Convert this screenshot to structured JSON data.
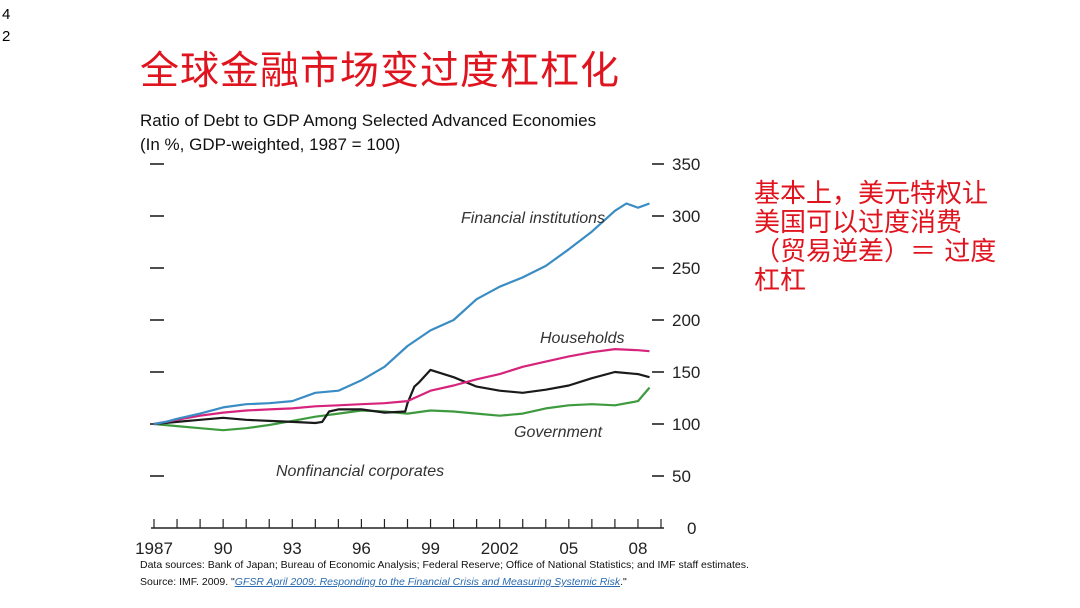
{
  "slide": {
    "number_line1": "4",
    "number_line2": "2"
  },
  "title": "全球金融市场变过度杠杠化",
  "subtitle": {
    "line1": "Ratio of Debt to GDP Among Selected Advanced Economies",
    "line2": "(In %, GDP-weighted, 1987 = 100)"
  },
  "note": "基本上，美元特权让\n美国可以过度消费\n（贸易逆差）＝ 过度\n杠杠",
  "footer": {
    "line1": "Data sources: Bank of Japan; Bureau of Economic Analysis; Federal Reserve; Office of National Statistics; and IMF staff estimates.",
    "line2_prefix": "Source: IMF. 2009. \"",
    "line2_link": "GFSR April 2009: Responding to the Financial Crisis and Measuring Systemic Risk",
    "line2_suffix": ".\""
  },
  "colors": {
    "financial": "#3a8cc4",
    "households": "#d6247c",
    "government": "#3e9a3e",
    "nonfinancial": "#1a1a1a",
    "title": "#e0141e"
  },
  "chart_data": {
    "type": "line",
    "title": "Ratio of Debt to GDP Among Selected Advanced Economies",
    "ylabel": "(In %, GDP-weighted, 1987 = 100)",
    "ylim": [
      0,
      350
    ],
    "yticks": [
      0,
      50,
      100,
      150,
      200,
      250,
      300,
      350
    ],
    "xlim": [
      1987,
      2009
    ],
    "xticks": [
      {
        "value": 1987,
        "label": "1987"
      },
      {
        "value": 1990,
        "label": "90"
      },
      {
        "value": 1993,
        "label": "93"
      },
      {
        "value": 1996,
        "label": "96"
      },
      {
        "value": 1999,
        "label": "99"
      },
      {
        "value": 2002,
        "label": "2002"
      },
      {
        "value": 2005,
        "label": "05"
      },
      {
        "value": 2008,
        "label": "08"
      }
    ],
    "series": [
      {
        "name": "Financial institutions",
        "key": "financial",
        "x": [
          1987,
          1987.5,
          1988,
          1989,
          1990,
          1991,
          1992,
          1993,
          1994,
          1995,
          1996,
          1997,
          1998,
          1999,
          2000,
          2001,
          2002,
          2003,
          2004,
          2005,
          2006,
          2007,
          2007.5,
          2008,
          2008.5
        ],
        "values": [
          100,
          102,
          105,
          110,
          116,
          119,
          120,
          122,
          130,
          132,
          142,
          155,
          175,
          190,
          200,
          220,
          232,
          241,
          252,
          268,
          285,
          305,
          312,
          308,
          312
        ]
      },
      {
        "name": "Households",
        "key": "households",
        "x": [
          1987,
          1988,
          1989,
          1990,
          1991,
          1992,
          1993,
          1994,
          1995,
          1996,
          1997,
          1998,
          1999,
          2000,
          2001,
          2002,
          2003,
          2004,
          2005,
          2006,
          2007,
          2008,
          2008.5
        ],
        "values": [
          100,
          104,
          108,
          111,
          113,
          114,
          115,
          117,
          118,
          119,
          120,
          122,
          132,
          137,
          143,
          148,
          155,
          160,
          165,
          169,
          172,
          171,
          170
        ]
      },
      {
        "name": "Government",
        "key": "government",
        "x": [
          1987,
          1988,
          1989,
          1990,
          1991,
          1992,
          1993,
          1994,
          1995,
          1996,
          1997,
          1998,
          1999,
          2000,
          2001,
          2002,
          2003,
          2004,
          2005,
          2006,
          2007,
          2008,
          2008.5
        ],
        "values": [
          100,
          98,
          96,
          94,
          96,
          99,
          103,
          107,
          110,
          113,
          112,
          110,
          113,
          112,
          110,
          108,
          110,
          115,
          118,
          119,
          118,
          122,
          135
        ]
      },
      {
        "name": "Nonfinancial corporates",
        "key": "nonfinancial",
        "x": [
          1987,
          1988,
          1989,
          1990,
          1991,
          1992,
          1993,
          1994,
          1994.3,
          1994.6,
          1995,
          1996,
          1997,
          1997.9,
          1998,
          1998.3,
          1998.5,
          1999,
          2000,
          2001,
          2002,
          2003,
          2004,
          2005,
          2006,
          2007,
          2008,
          2008.5
        ],
        "values": [
          100,
          102,
          104,
          106,
          104,
          103,
          102,
          101,
          102,
          112,
          114,
          114,
          111,
          112,
          120,
          136,
          140,
          152,
          145,
          136,
          132,
          130,
          133,
          137,
          144,
          150,
          148,
          145
        ]
      }
    ],
    "labels": {
      "financial": "Financial institutions",
      "households": "Households",
      "government": "Government",
      "nonfinancial": "Nonfinancial corporates"
    }
  }
}
